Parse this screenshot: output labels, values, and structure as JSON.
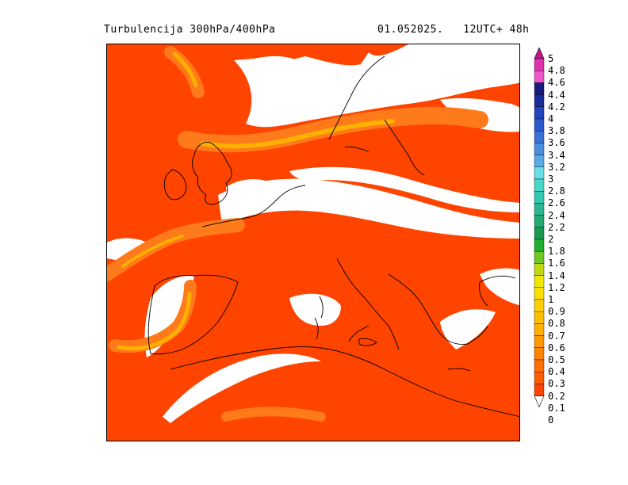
{
  "header": {
    "title_left": "Turbulencija 300hPa/400hPa",
    "title_right": "01.052025.   12UTC+ 48h"
  },
  "map": {
    "background_color": "#ff4400",
    "light_band_color": "#ff7a1a",
    "bright_band_color": "#ffb000",
    "no_data_color": "#ffffff",
    "coastline_color": "#000000"
  },
  "legend": {
    "levels": [
      "5",
      "4.8",
      "4.6",
      "4.4",
      "4.2",
      "4",
      "3.8",
      "3.6",
      "3.4",
      "3.2",
      "3",
      "2.8",
      "2.6",
      "2.4",
      "2.2",
      "2",
      "1.8",
      "1.6",
      "1.4",
      "1.2",
      "1",
      "0.9",
      "0.8",
      "0.7",
      "0.6",
      "0.5",
      "0.4",
      "0.3",
      "0.2",
      "0.1",
      "0"
    ],
    "colors": [
      "#c0168a",
      "#e030b0",
      "#f055cc",
      "#1a1a80",
      "#1a2a9a",
      "#2244c0",
      "#2a5ad0",
      "#3a70d8",
      "#4a8ee0",
      "#5aaae8",
      "#66e0e6",
      "#44d8c8",
      "#33c8b0",
      "#2ab890",
      "#22a870",
      "#1a9850",
      "#20b030",
      "#70c820",
      "#c0d810",
      "#f0e800",
      "#ffe000",
      "#ffd000",
      "#ffc000",
      "#ffb000",
      "#ff9800",
      "#ff8400",
      "#ff7000",
      "#ff5c00",
      "#ff4400",
      "#ffffff"
    ]
  }
}
